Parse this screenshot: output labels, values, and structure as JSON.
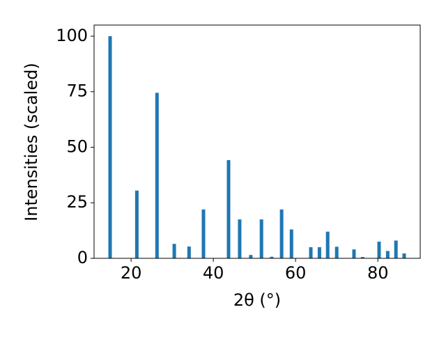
{
  "chart_data": {
    "type": "bar",
    "xlabel": "2θ (°)",
    "ylabel": "Intensities (scaled)",
    "color": "#1f77b4",
    "x": [
      14.9,
      21.4,
      26.3,
      30.5,
      34.1,
      37.6,
      43.7,
      46.4,
      49.1,
      51.7,
      54.2,
      56.6,
      59.0,
      63.7,
      65.8,
      67.8,
      70.0,
      74.2,
      76.3,
      80.3,
      82.4,
      84.4,
      86.4
    ],
    "values": [
      100,
      30.5,
      74.5,
      6.5,
      5.3,
      22,
      44.2,
      17.5,
      1.5,
      17.5,
      0.7,
      22,
      13,
      5,
      5,
      12,
      5.2,
      4,
      0.6,
      7.5,
      3.3,
      8,
      2.2
    ],
    "xlim": [
      11,
      90.3
    ],
    "ylim": [
      0,
      105
    ],
    "xticks": [
      20,
      40,
      60,
      80
    ],
    "yticks": [
      0,
      25,
      50,
      75,
      100
    ]
  }
}
